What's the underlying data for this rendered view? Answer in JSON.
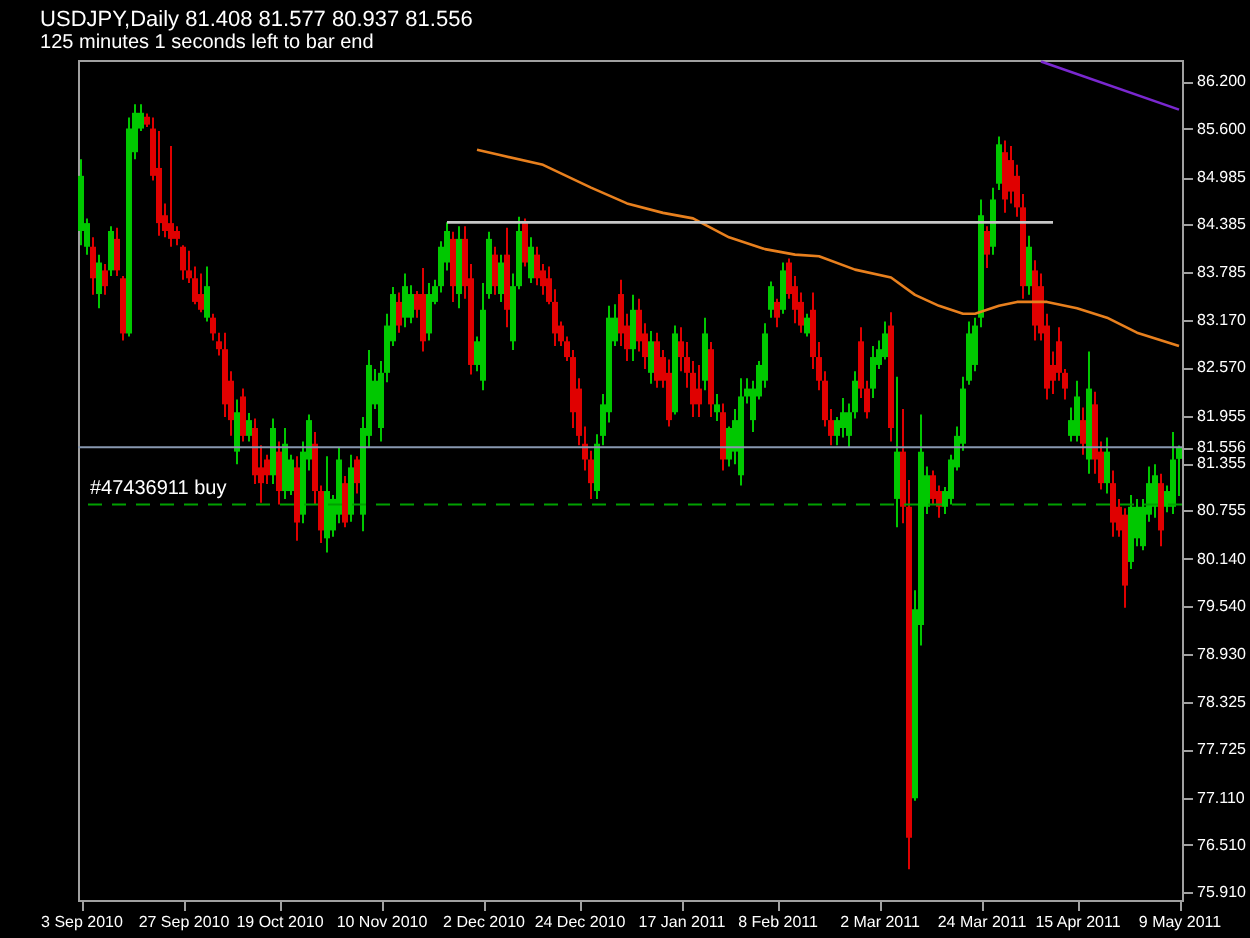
{
  "chart_data": {
    "type": "candlestick",
    "title": "USDJPY,Daily 81.408 81.577 80.937 81.556",
    "subtitle": "125 minutes 1 seconds left to bar end",
    "categories": [
      "3 Sep 2010",
      null,
      null,
      null,
      null,
      null,
      null,
      null,
      null,
      null,
      null,
      null,
      null,
      null,
      null,
      null,
      null,
      "27 Sep 2010",
      null,
      null,
      null,
      null,
      null,
      null,
      null,
      null,
      null,
      null,
      null,
      null,
      null,
      null,
      null,
      "19 Oct 2010",
      null,
      null,
      null,
      null,
      null,
      null,
      null,
      null,
      null,
      null,
      null,
      null,
      null,
      null,
      null,
      null,
      "10 Nov 2010",
      null,
      null,
      null,
      null,
      null,
      null,
      null,
      null,
      null,
      null,
      null,
      null,
      null,
      null,
      null,
      null,
      "2 Dec 2010",
      null,
      null,
      null,
      null,
      null,
      null,
      null,
      null,
      null,
      null,
      null,
      null,
      null,
      null,
      null,
      "24 Dec 2010",
      null,
      null,
      null,
      null,
      null,
      null,
      null,
      null,
      null,
      null,
      null,
      null,
      null,
      null,
      null,
      null,
      "17 Jan 2011",
      null,
      null,
      null,
      null,
      null,
      null,
      null,
      null,
      null,
      null,
      null,
      null,
      null,
      null,
      null,
      "8 Feb 2011",
      null,
      null,
      null,
      null,
      null,
      null,
      null,
      null,
      null,
      null,
      null,
      null,
      null,
      null,
      null,
      null,
      "2 Mar 2011",
      null,
      null,
      null,
      null,
      null,
      null,
      null,
      null,
      null,
      null,
      null,
      null,
      null,
      null,
      null,
      null,
      "24 Mar 2011",
      null,
      null,
      null,
      null,
      null,
      null,
      null,
      null,
      null,
      null,
      null,
      null,
      null,
      null,
      null,
      "15 Apr 2011",
      null,
      null,
      null,
      null,
      null,
      null,
      null,
      null,
      null,
      null,
      null,
      null,
      null,
      null,
      null,
      null,
      "9 May 2011"
    ],
    "ohlc": [
      [
        84.3,
        85.21,
        84.12,
        85.0
      ],
      [
        84.1,
        84.46,
        84.0,
        84.4
      ],
      [
        84.1,
        84.22,
        83.49,
        83.7
      ],
      [
        83.5,
        84.0,
        83.32,
        83.9
      ],
      [
        83.8,
        83.88,
        83.49,
        83.6
      ],
      [
        83.8,
        84.36,
        83.73,
        84.3
      ],
      [
        84.2,
        84.34,
        83.73,
        83.8
      ],
      [
        83.7,
        83.73,
        82.91,
        83.0
      ],
      [
        83.0,
        85.74,
        82.96,
        85.6
      ],
      [
        85.3,
        85.91,
        85.21,
        85.8
      ],
      [
        85.6,
        85.91,
        85.57,
        85.8
      ],
      [
        85.75,
        85.79,
        85.62,
        85.65
      ],
      [
        85.6,
        85.74,
        84.94,
        85.0
      ],
      [
        85.1,
        85.57,
        84.24,
        84.4
      ],
      [
        84.5,
        84.65,
        84.22,
        84.3
      ],
      [
        84.4,
        85.38,
        84.1,
        84.2
      ],
      [
        84.3,
        84.36,
        84.12,
        84.2
      ],
      [
        84.1,
        84.12,
        83.68,
        83.8
      ],
      [
        83.8,
        84.05,
        83.64,
        83.7
      ],
      [
        83.7,
        83.85,
        83.37,
        83.4
      ],
      [
        83.5,
        83.76,
        83.27,
        83.3
      ],
      [
        83.2,
        83.85,
        83.15,
        83.6
      ],
      [
        83.2,
        83.25,
        82.91,
        83.0
      ],
      [
        82.9,
        83.01,
        82.72,
        82.8
      ],
      [
        82.8,
        83.01,
        81.94,
        82.1
      ],
      [
        82.4,
        82.52,
        81.7,
        81.9
      ],
      [
        81.5,
        82.16,
        81.34,
        82.0
      ],
      [
        82.2,
        82.3,
        81.63,
        81.7
      ],
      [
        81.7,
        81.99,
        81.63,
        81.9
      ],
      [
        81.8,
        81.92,
        81.09,
        81.2
      ],
      [
        81.3,
        81.58,
        80.85,
        81.1
      ],
      [
        81.4,
        81.46,
        81.09,
        81.2
      ],
      [
        81.2,
        81.92,
        81.09,
        81.8
      ],
      [
        81.5,
        81.63,
        80.83,
        81.0
      ],
      [
        81.0,
        81.8,
        80.9,
        81.6
      ],
      [
        81.0,
        81.46,
        80.95,
        81.4
      ],
      [
        81.3,
        81.44,
        80.37,
        80.6
      ],
      [
        80.7,
        81.63,
        80.59,
        81.5
      ],
      [
        81.4,
        81.97,
        81.26,
        81.9
      ],
      [
        81.6,
        81.75,
        80.83,
        81.0
      ],
      [
        81.0,
        81.07,
        80.34,
        80.5
      ],
      [
        80.4,
        81.44,
        80.22,
        81.0
      ],
      [
        80.5,
        80.95,
        80.42,
        80.9
      ],
      [
        80.7,
        81.56,
        80.59,
        81.4
      ],
      [
        81.1,
        81.19,
        80.54,
        80.6
      ],
      [
        80.7,
        81.46,
        80.61,
        81.3
      ],
      [
        81.4,
        81.44,
        80.97,
        81.1
      ],
      [
        80.7,
        81.94,
        80.49,
        81.8
      ],
      [
        81.7,
        82.79,
        81.56,
        82.6
      ],
      [
        82.1,
        82.55,
        82.04,
        82.4
      ],
      [
        81.8,
        82.65,
        81.63,
        82.5
      ],
      [
        82.5,
        83.25,
        82.38,
        83.1
      ],
      [
        82.9,
        83.59,
        82.84,
        83.5
      ],
      [
        83.4,
        83.52,
        83.01,
        83.1
      ],
      [
        83.2,
        83.76,
        83.08,
        83.6
      ],
      [
        83.2,
        83.61,
        83.13,
        83.5
      ],
      [
        83.5,
        83.54,
        83.2,
        83.3
      ],
      [
        83.5,
        83.83,
        82.77,
        82.9
      ],
      [
        83.0,
        83.64,
        82.91,
        83.5
      ],
      [
        83.4,
        83.68,
        83.37,
        83.6
      ],
      [
        83.6,
        84.17,
        83.52,
        84.1
      ],
      [
        83.9,
        84.41,
        83.8,
        84.3
      ],
      [
        84.2,
        84.29,
        83.4,
        83.6
      ],
      [
        83.5,
        84.36,
        83.32,
        84.2
      ],
      [
        84.2,
        84.36,
        83.44,
        83.6
      ],
      [
        83.7,
        83.88,
        82.48,
        82.6
      ],
      [
        82.6,
        82.96,
        82.52,
        82.9
      ],
      [
        82.4,
        83.64,
        82.28,
        83.3
      ],
      [
        83.5,
        84.29,
        83.44,
        84.2
      ],
      [
        84.0,
        84.1,
        83.49,
        83.6
      ],
      [
        83.5,
        84.0,
        83.4,
        83.9
      ],
      [
        84.0,
        84.34,
        83.08,
        83.3
      ],
      [
        82.9,
        83.76,
        82.79,
        83.6
      ],
      [
        83.6,
        84.48,
        83.56,
        84.3
      ],
      [
        84.4,
        84.46,
        83.85,
        83.9
      ],
      [
        83.7,
        84.22,
        83.64,
        84.1
      ],
      [
        84.0,
        84.1,
        83.61,
        83.7
      ],
      [
        83.8,
        83.88,
        83.49,
        83.6
      ],
      [
        83.7,
        83.85,
        83.37,
        83.4
      ],
      [
        83.4,
        83.56,
        82.84,
        83.0
      ],
      [
        83.1,
        83.15,
        82.84,
        82.9
      ],
      [
        82.9,
        82.96,
        82.65,
        82.7
      ],
      [
        82.7,
        82.79,
        81.8,
        82.0
      ],
      [
        82.3,
        82.43,
        81.58,
        81.7
      ],
      [
        81.6,
        81.82,
        81.26,
        81.4
      ],
      [
        81.4,
        81.51,
        80.9,
        81.1
      ],
      [
        81.0,
        81.72,
        80.9,
        81.6
      ],
      [
        81.7,
        82.23,
        81.58,
        82.1
      ],
      [
        82.0,
        83.35,
        81.87,
        83.2
      ],
      [
        82.9,
        83.37,
        82.84,
        83.2
      ],
      [
        83.5,
        83.68,
        82.84,
        83.0
      ],
      [
        83.1,
        83.25,
        82.65,
        82.8
      ],
      [
        82.8,
        83.49,
        82.65,
        83.3
      ],
      [
        83.3,
        83.44,
        82.77,
        82.9
      ],
      [
        83.0,
        83.13,
        82.55,
        82.7
      ],
      [
        82.5,
        83.03,
        82.36,
        82.9
      ],
      [
        82.9,
        83.01,
        82.31,
        82.4
      ],
      [
        82.7,
        82.79,
        82.31,
        82.4
      ],
      [
        82.5,
        82.67,
        81.82,
        81.9
      ],
      [
        82.0,
        83.1,
        81.97,
        83.0
      ],
      [
        82.9,
        83.08,
        82.52,
        82.7
      ],
      [
        82.7,
        82.89,
        82.31,
        82.5
      ],
      [
        82.5,
        82.65,
        81.94,
        82.1
      ],
      [
        82.3,
        82.6,
        81.94,
        82.1
      ],
      [
        82.4,
        83.2,
        82.28,
        83.0
      ],
      [
        82.8,
        82.89,
        81.94,
        82.1
      ],
      [
        82.0,
        82.23,
        81.89,
        82.1
      ],
      [
        82.0,
        82.11,
        81.26,
        81.4
      ],
      [
        81.4,
        81.82,
        81.31,
        81.8
      ],
      [
        81.5,
        82.04,
        81.34,
        81.9
      ],
      [
        81.2,
        82.43,
        81.07,
        82.2
      ],
      [
        82.2,
        82.43,
        82.11,
        82.3
      ],
      [
        81.9,
        82.4,
        81.75,
        82.3
      ],
      [
        82.2,
        82.65,
        82.16,
        82.6
      ],
      [
        82.4,
        83.13,
        82.31,
        83.0
      ],
      [
        83.3,
        83.66,
        83.2,
        83.6
      ],
      [
        83.4,
        83.44,
        83.08,
        83.2
      ],
      [
        83.3,
        83.9,
        83.25,
        83.8
      ],
      [
        83.9,
        83.95,
        83.44,
        83.5
      ],
      [
        83.6,
        83.73,
        83.13,
        83.3
      ],
      [
        83.4,
        83.52,
        83.01,
        83.1
      ],
      [
        83.0,
        83.25,
        82.96,
        83.2
      ],
      [
        83.3,
        83.52,
        82.55,
        82.7
      ],
      [
        82.7,
        82.89,
        82.28,
        82.4
      ],
      [
        82.4,
        82.52,
        81.82,
        81.9
      ],
      [
        81.9,
        82.04,
        81.58,
        81.7
      ],
      [
        81.7,
        81.94,
        81.58,
        81.9
      ],
      [
        81.8,
        82.18,
        81.68,
        82.0
      ],
      [
        81.7,
        82.11,
        81.56,
        82.0
      ],
      [
        82.0,
        82.52,
        81.92,
        82.4
      ],
      [
        82.9,
        83.08,
        82.18,
        82.3
      ],
      [
        82.3,
        82.4,
        81.92,
        82.0
      ],
      [
        82.3,
        82.84,
        82.18,
        82.7
      ],
      [
        82.6,
        82.91,
        82.55,
        82.8
      ],
      [
        82.7,
        83.15,
        82.67,
        83.0
      ],
      [
        83.1,
        83.27,
        81.63,
        81.8
      ],
      [
        80.9,
        82.45,
        80.54,
        81.5
      ],
      [
        81.5,
        82.04,
        80.59,
        80.8
      ],
      [
        80.8,
        81.14,
        76.2,
        76.6
      ],
      [
        77.1,
        79.74,
        77.07,
        79.5
      ],
      [
        79.3,
        81.97,
        79.04,
        81.5
      ],
      [
        80.8,
        81.31,
        80.71,
        81.2
      ],
      [
        81.2,
        81.26,
        80.83,
        80.9
      ],
      [
        81.0,
        81.07,
        80.66,
        80.8
      ],
      [
        80.8,
        81.05,
        80.71,
        81.0
      ],
      [
        80.9,
        81.46,
        80.83,
        81.4
      ],
      [
        81.3,
        81.82,
        81.26,
        81.7
      ],
      [
        81.6,
        82.45,
        81.51,
        82.3
      ],
      [
        82.4,
        83.15,
        82.35,
        83.0
      ],
      [
        82.6,
        83.2,
        82.52,
        83.1
      ],
      [
        83.2,
        84.7,
        83.08,
        84.5
      ],
      [
        84.3,
        84.36,
        83.83,
        84.0
      ],
      [
        84.1,
        84.85,
        84.0,
        84.7
      ],
      [
        84.9,
        85.5,
        84.82,
        85.4
      ],
      [
        85.3,
        85.45,
        84.53,
        84.7
      ],
      [
        85.2,
        85.38,
        84.65,
        84.8
      ],
      [
        85.0,
        85.14,
        84.48,
        84.6
      ],
      [
        84.6,
        84.77,
        83.44,
        83.6
      ],
      [
        83.6,
        84.24,
        83.49,
        84.1
      ],
      [
        83.8,
        83.93,
        82.91,
        83.1
      ],
      [
        83.6,
        83.76,
        82.91,
        83.0
      ],
      [
        83.1,
        83.25,
        82.16,
        82.3
      ],
      [
        82.6,
        82.77,
        82.23,
        82.4
      ],
      [
        82.9,
        83.08,
        82.4,
        82.5
      ],
      [
        82.5,
        82.55,
        82.16,
        82.3
      ],
      [
        81.7,
        82.06,
        81.63,
        81.9
      ],
      [
        81.7,
        82.4,
        81.63,
        82.2
      ],
      [
        81.9,
        82.06,
        81.46,
        81.6
      ],
      [
        81.4,
        82.77,
        81.22,
        82.3
      ],
      [
        82.1,
        82.26,
        81.22,
        81.4
      ],
      [
        81.5,
        81.63,
        81.02,
        81.1
      ],
      [
        81.1,
        81.68,
        80.97,
        81.5
      ],
      [
        81.1,
        81.26,
        80.42,
        80.6
      ],
      [
        80.8,
        80.9,
        80.42,
        80.5
      ],
      [
        80.7,
        80.78,
        79.52,
        79.8
      ],
      [
        80.1,
        80.95,
        80.01,
        80.8
      ],
      [
        80.4,
        80.9,
        80.3,
        80.8
      ],
      [
        80.3,
        80.9,
        80.25,
        80.8
      ],
      [
        80.7,
        81.31,
        80.61,
        81.1
      ],
      [
        80.8,
        81.34,
        80.66,
        81.2
      ],
      [
        81.1,
        81.22,
        80.3,
        80.5
      ],
      [
        80.8,
        81.07,
        80.73,
        81.0
      ],
      [
        80.8,
        81.75,
        80.71,
        81.4
      ],
      [
        81.408,
        81.577,
        80.937,
        81.556
      ]
    ],
    "colors": [
      "#00c800",
      "#00c800",
      "#e00000",
      "#00c800",
      "#e00000",
      "#00c800",
      "#e00000",
      "#e00000",
      "#00c800",
      "#00c800",
      "#00c800",
      "#e00000",
      "#e00000",
      "#e00000",
      "#e00000",
      "#e00000",
      "#e00000",
      "#e00000",
      "#e00000",
      "#e00000",
      "#e00000",
      "#00c800",
      "#e00000",
      "#e00000",
      "#e00000",
      "#e00000",
      "#00c800",
      "#e00000",
      "#00c800",
      "#e00000",
      "#e00000",
      "#e00000",
      "#00c800",
      "#e00000",
      "#00c800",
      "#00c800",
      "#e00000",
      "#00c800",
      "#00c800",
      "#e00000",
      "#e00000",
      "#00c800",
      "#00c800",
      "#00c800",
      "#e00000",
      "#00c800",
      "#e00000",
      "#00c800",
      "#00c800",
      "#00c800",
      "#00c800",
      "#00c800",
      "#00c800",
      "#e00000",
      "#00c800",
      "#00c800",
      "#e00000",
      "#e00000",
      "#00c800",
      "#00c800",
      "#00c800",
      "#00c800",
      "#e00000",
      "#00c800",
      "#e00000",
      "#e00000",
      "#00c800",
      "#00c800",
      "#00c800",
      "#e00000",
      "#00c800",
      "#e00000",
      "#00c800",
      "#00c800",
      "#e00000",
      "#00c800",
      "#e00000",
      "#e00000",
      "#e00000",
      "#e00000",
      "#e00000",
      "#e00000",
      "#e00000",
      "#e00000",
      "#e00000",
      "#e00000",
      "#00c800",
      "#00c800",
      "#00c800",
      "#00c800",
      "#e00000",
      "#e00000",
      "#00c800",
      "#e00000",
      "#e00000",
      "#00c800",
      "#e00000",
      "#e00000",
      "#e00000",
      "#00c800",
      "#e00000",
      "#e00000",
      "#e00000",
      "#e00000",
      "#00c800",
      "#e00000",
      "#00c800",
      "#e00000",
      "#00c800",
      "#00c800",
      "#00c800",
      "#00c800",
      "#00c800",
      "#00c800",
      "#00c800",
      "#00c800",
      "#e00000",
      "#00c800",
      "#e00000",
      "#e00000",
      "#e00000",
      "#00c800",
      "#e00000",
      "#e00000",
      "#e00000",
      "#e00000",
      "#00c800",
      "#00c800",
      "#00c800",
      "#00c800",
      "#e00000",
      "#e00000",
      "#00c800",
      "#00c800",
      "#00c800",
      "#e00000",
      "#00c800",
      "#e00000",
      "#e00000",
      "#00c800",
      "#00c800",
      "#00c800",
      "#e00000",
      "#e00000",
      "#00c800",
      "#00c800",
      "#00c800",
      "#00c800",
      "#00c800",
      "#00c800",
      "#00c800",
      "#e00000",
      "#00c800",
      "#00c800",
      "#e00000",
      "#e00000",
      "#e00000",
      "#e00000",
      "#00c800",
      "#e00000",
      "#e00000",
      "#e00000",
      "#e00000",
      "#e00000",
      "#e00000",
      "#00c800",
      "#00c800",
      "#e00000",
      "#00c800",
      "#e00000",
      "#e00000",
      "#00c800",
      "#e00000",
      "#e00000",
      "#e00000",
      "#00c800",
      "#00c800",
      "#00c800",
      "#00c800",
      "#00c800",
      "#e00000",
      "#00c800",
      "#00c800",
      "#00c800"
    ],
    "series": [
      {
        "type": "line",
        "color": "#e8801e",
        "values": [
          null,
          null,
          null,
          null,
          null,
          null,
          null,
          null,
          null,
          null,
          null,
          null,
          null,
          null,
          null,
          null,
          null,
          null,
          null,
          null,
          null,
          null,
          null,
          null,
          null,
          null,
          null,
          null,
          null,
          null,
          null,
          null,
          null,
          null,
          null,
          null,
          null,
          null,
          null,
          null,
          null,
          null,
          null,
          null,
          null,
          null,
          null,
          null,
          null,
          null,
          null,
          null,
          null,
          null,
          null,
          null,
          null,
          null,
          null,
          null,
          null,
          null,
          null,
          null,
          null,
          null,
          85.33,
          null,
          null,
          null,
          85.26,
          null,
          null,
          null,
          null,
          null,
          null,
          85.14,
          null,
          null,
          null,
          null,
          null,
          null,
          null,
          84.85,
          null,
          null,
          null,
          null,
          null,
          84.65,
          null,
          null,
          null,
          null,
          null,
          84.53,
          null,
          null,
          null,
          null,
          84.46,
          null,
          null,
          null,
          null,
          null,
          84.22,
          null,
          null,
          null,
          null,
          null,
          84.07,
          null,
          null,
          null,
          null,
          84.0,
          null,
          null,
          null,
          83.98,
          null,
          null,
          null,
          null,
          null,
          83.81,
          null,
          null,
          null,
          null,
          null,
          83.71,
          null,
          null,
          null,
          83.49,
          null,
          null,
          null,
          83.35,
          null,
          null,
          null,
          83.25,
          null,
          83.25,
          null,
          null,
          null,
          83.35,
          null,
          null,
          83.4,
          null,
          null,
          null,
          null,
          83.4,
          null,
          null,
          null,
          null,
          83.32,
          null,
          null,
          null,
          null,
          83.2,
          null,
          null,
          null,
          null,
          83.01,
          null,
          null,
          null,
          null,
          null,
          null,
          82.84
        ]
      },
      {
        "type": "line",
        "color": "#7a28d0",
        "values": [
          null,
          null,
          null,
          null,
          null,
          null,
          null,
          null,
          null,
          null,
          null,
          null,
          null,
          null,
          null,
          null,
          null,
          null,
          null,
          null,
          null,
          null,
          null,
          null,
          null,
          null,
          null,
          null,
          null,
          null,
          null,
          null,
          null,
          null,
          null,
          null,
          null,
          null,
          null,
          null,
          null,
          null,
          null,
          null,
          null,
          null,
          null,
          null,
          null,
          null,
          null,
          null,
          null,
          null,
          null,
          null,
          null,
          null,
          null,
          null,
          null,
          null,
          null,
          null,
          null,
          null,
          null,
          null,
          null,
          null,
          null,
          null,
          null,
          null,
          null,
          null,
          null,
          null,
          null,
          null,
          null,
          null,
          null,
          null,
          null,
          null,
          null,
          null,
          null,
          null,
          null,
          null,
          null,
          null,
          null,
          null,
          null,
          null,
          null,
          null,
          null,
          null,
          null,
          null,
          null,
          null,
          null,
          null,
          null,
          null,
          null,
          null,
          null,
          null,
          null,
          null,
          null,
          null,
          null,
          null,
          null,
          null,
          null,
          null,
          null,
          null,
          null,
          null,
          null,
          null,
          null,
          null,
          null,
          null,
          null,
          null,
          null,
          null,
          null,
          null,
          null,
          null,
          null,
          null,
          null,
          null,
          null,
          null,
          null,
          null,
          null,
          null,
          null,
          null,
          null,
          null,
          null,
          null,
          null,
          null,
          86.45,
          null,
          null,
          null,
          null,
          null,
          null,
          null,
          null,
          null,
          null,
          null,
          null,
          null,
          null,
          null,
          null,
          null,
          null,
          null,
          null,
          null,
          null,
          85.84
        ]
      },
      {
        "type": "line",
        "color": "#c8c8c8",
        "values": [
          null,
          null,
          null,
          null,
          null,
          null,
          null,
          null,
          null,
          null,
          null,
          null,
          null,
          null,
          null,
          null,
          null,
          null,
          null,
          null,
          null,
          null,
          null,
          null,
          null,
          null,
          null,
          null,
          null,
          null,
          null,
          null,
          null,
          null,
          null,
          null,
          null,
          null,
          null,
          null,
          null,
          null,
          null,
          null,
          null,
          null,
          null,
          null,
          null,
          null,
          null,
          null,
          null,
          null,
          null,
          null,
          null,
          null,
          null,
          null,
          null,
          84.41,
          null,
          null,
          null,
          null,
          null,
          null,
          null,
          null,
          null,
          null,
          null,
          null,
          null,
          null,
          null,
          null,
          null,
          null,
          null,
          null,
          null,
          null,
          null,
          null,
          null,
          null,
          null,
          null,
          null,
          null,
          null,
          null,
          null,
          null,
          null,
          null,
          null,
          null,
          null,
          null,
          null,
          null,
          null,
          null,
          null,
          null,
          null,
          null,
          null,
          null,
          null,
          null,
          null,
          null,
          null,
          null,
          null,
          null,
          null,
          null,
          null,
          null,
          null,
          null,
          null,
          null,
          null,
          null,
          null,
          null,
          null,
          null,
          null,
          null,
          null,
          null,
          null,
          null,
          null,
          null,
          null,
          null,
          null,
          null,
          null,
          null,
          null,
          null,
          null,
          null,
          null,
          null,
          null,
          null,
          null,
          null,
          null,
          null,
          null,
          null,
          84.41,
          null,
          null,
          null,
          null,
          null,
          null,
          null,
          null,
          null,
          null,
          null,
          null,
          null,
          null,
          null,
          null,
          null,
          null,
          null,
          null,
          null
        ]
      }
    ],
    "ylim": [
      75.81,
      86.47
    ],
    "yticks": [
      {
        "value": 86.2,
        "label": "86.200"
      },
      {
        "value": 85.6,
        "label": "85.600"
      },
      84.985,
      84.385,
      83.785,
      {
        "value": 83.17,
        "label": "83.170"
      },
      {
        "value": 82.57,
        "label": "82.570"
      },
      81.955,
      81.556,
      81.355,
      80.755,
      {
        "value": 80.14,
        "label": "80.140"
      },
      {
        "value": 79.54,
        "label": "79.540"
      },
      {
        "value": 78.93,
        "label": "78.930"
      },
      78.325,
      77.725,
      {
        "value": 77.11,
        "label": "77.110"
      },
      {
        "value": 76.51,
        "label": "76.510"
      },
      {
        "value": 75.91,
        "label": "75.910"
      }
    ],
    "ref_lines": [
      {
        "axis": "y",
        "value": 81.556,
        "color": "#8898b0"
      },
      {
        "axis": "y",
        "value": 80.83,
        "label": "#47436911 buy",
        "color": "#00a000",
        "line_style": "dashed"
      }
    ]
  }
}
